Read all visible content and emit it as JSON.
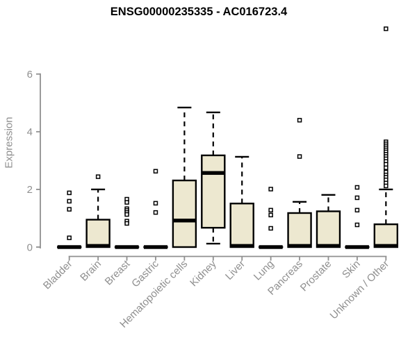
{
  "chart_data": {
    "type": "boxplot",
    "title": "ENSG00000235335 - AC016723.4",
    "ylabel": "Expression",
    "xlabel": "",
    "yticks": [
      0,
      2,
      4,
      6
    ],
    "ylim": [
      0,
      7.8
    ],
    "grid": false,
    "legend": "none",
    "categories": [
      "Bladder",
      "Brain",
      "Breast",
      "Gastric",
      "Hematopoietic cells",
      "Kidney",
      "Liver",
      "Lung",
      "Pancreas",
      "Prostate",
      "Skin",
      "Unknown / Other"
    ],
    "boxes": [
      {
        "label": "Bladder",
        "q1": 0,
        "median": 0,
        "q3": 0,
        "whisker_low": 0,
        "whisker_high": 0,
        "outliers": [
          1.88,
          1.59,
          1.31,
          0.32
        ]
      },
      {
        "label": "Brain",
        "q1": 0,
        "median": 0.04,
        "q3": 0.95,
        "whisker_low": 0,
        "whisker_high": 2.0,
        "outliers": [
          2.44
        ]
      },
      {
        "label": "Breast",
        "q1": 0,
        "median": 0,
        "q3": 0,
        "whisker_low": 0,
        "whisker_high": 0,
        "outliers": [
          1.66,
          1.55,
          1.33,
          1.27,
          1.2,
          1.13,
          0.9,
          0.82
        ]
      },
      {
        "label": "Gastric",
        "q1": 0,
        "median": 0,
        "q3": 0,
        "whisker_low": 0,
        "whisker_high": 0,
        "outliers": [
          2.63,
          1.52,
          1.2
        ]
      },
      {
        "label": "Hematopoietic cells",
        "q1": 0,
        "median": 0.92,
        "q3": 2.31,
        "whisker_low": 0,
        "whisker_high": 4.84,
        "outliers": []
      },
      {
        "label": "Kidney",
        "q1": 0.67,
        "median": 2.57,
        "q3": 3.18,
        "whisker_low": 0.12,
        "whisker_high": 4.67,
        "outliers": []
      },
      {
        "label": "Liver",
        "q1": 0,
        "median": 0.04,
        "q3": 1.51,
        "whisker_low": 0,
        "whisker_high": 3.13,
        "outliers": []
      },
      {
        "label": "Lung",
        "q1": 0,
        "median": 0,
        "q3": 0,
        "whisker_low": 0,
        "whisker_high": 0,
        "outliers": [
          2.01,
          1.28,
          1.11,
          0.65
        ]
      },
      {
        "label": "Pancreas",
        "q1": 0,
        "median": 0.04,
        "q3": 1.18,
        "whisker_low": 0,
        "whisker_high": 1.57,
        "outliers": [
          4.4,
          3.14
        ]
      },
      {
        "label": "Prostate",
        "q1": 0,
        "median": 0.04,
        "q3": 1.24,
        "whisker_low": 0,
        "whisker_high": 1.81,
        "outliers": []
      },
      {
        "label": "Skin",
        "q1": 0,
        "median": 0,
        "q3": 0,
        "whisker_low": 0,
        "whisker_high": 0,
        "outliers": [
          2.07,
          1.71,
          1.28,
          0.77
        ]
      },
      {
        "label": "Unknown / Other",
        "q1": 0,
        "median": 0.04,
        "q3": 0.79,
        "whisker_low": 0,
        "whisker_high": 2.0,
        "outliers": [
          7.57,
          3.65,
          3.58,
          3.51,
          3.44,
          3.37,
          3.3,
          3.22,
          3.14,
          3.06,
          2.97,
          2.87,
          2.75,
          2.6,
          2.5,
          2.42,
          2.33,
          2.22,
          2.12
        ]
      }
    ],
    "colors": {
      "box_fill": "#ede8d0",
      "box_stroke": "#000000",
      "median": "#000000",
      "whisker": "#000000",
      "outlier_stroke": "#000000",
      "outlier_fill": "#ffffff",
      "axis": "#8f8f8f",
      "tick_label": "#8f8f8f",
      "title": "#000000",
      "background": "#ffffff"
    }
  }
}
